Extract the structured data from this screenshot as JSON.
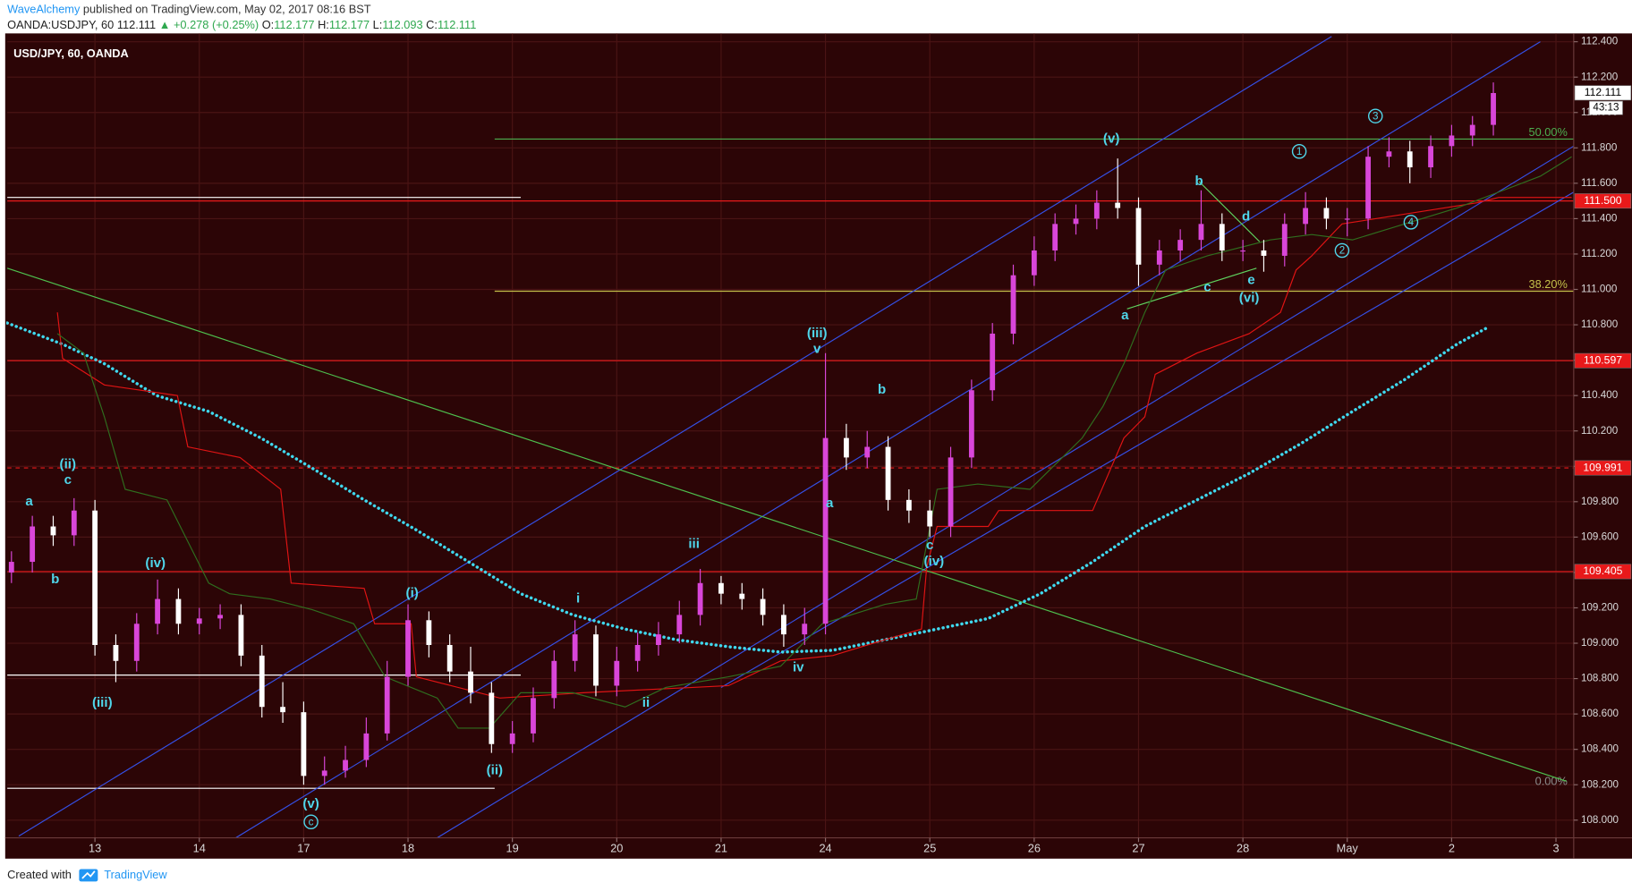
{
  "header": {
    "author": "WaveAlchemy",
    "published": "published on TradingView.com, May 02, 2017 08:16 BST",
    "symbol": "OANDA:USDJPY, 60",
    "last": "112.111",
    "arrow": "▲",
    "change": "+0.278 (+0.25%)",
    "ohlc": [
      {
        "key": "O:",
        "value": "112.177"
      },
      {
        "key": "H:",
        "value": "112.177"
      },
      {
        "key": "L:",
        "value": "112.093"
      },
      {
        "key": "C:",
        "value": "112.111"
      }
    ]
  },
  "chart_data": {
    "type": "candlestick",
    "title": "USD/JPY, 60, OANDA",
    "up_color": "#d946d9",
    "down_color": "#ffffff",
    "x": [
      -0.8,
      -0.6,
      -0.4,
      -0.2,
      0,
      0.2,
      0.4,
      0.6,
      0.8,
      1,
      1.2,
      1.4,
      1.6,
      1.8,
      2,
      2.2,
      2.4,
      2.6,
      2.8,
      3,
      3.2,
      3.4,
      3.6,
      3.8,
      4,
      4.2,
      4.4,
      4.6,
      4.8,
      5,
      5.2,
      5.4,
      5.6,
      5.8,
      6,
      6.2,
      6.4,
      6.6,
      6.8,
      7,
      7.2,
      7.4,
      7.6,
      7.8,
      8,
      8.2,
      8.4,
      8.6,
      8.8,
      9,
      9.2,
      9.4,
      9.6,
      9.8,
      10,
      10.2,
      10.4,
      10.6,
      10.8,
      11,
      11.2,
      11.4,
      11.6,
      11.8,
      12,
      12.2,
      12.4,
      12.6,
      12.8,
      13,
      13.2,
      13.4
    ],
    "open": [
      109.4,
      109.46,
      109.66,
      109.61,
      109.75,
      108.99,
      108.9,
      109.11,
      109.25,
      109.11,
      109.14,
      109.16,
      108.93,
      108.64,
      108.61,
      108.25,
      108.28,
      108.34,
      108.49,
      108.81,
      109.13,
      108.99,
      108.84,
      108.72,
      108.43,
      108.49,
      108.69,
      108.9,
      109.05,
      108.76,
      108.9,
      108.99,
      109.05,
      109.16,
      109.34,
      109.28,
      109.25,
      109.16,
      109.05,
      109.11,
      110.16,
      110.05,
      110.11,
      109.81,
      109.75,
      109.66,
      110.05,
      110.43,
      110.75,
      111.08,
      111.22,
      111.37,
      111.4,
      111.49,
      111.46,
      111.14,
      111.22,
      111.28,
      111.37,
      111.22,
      111.22,
      111.19,
      111.37,
      111.46,
      111.4,
      111.4,
      111.75,
      111.78,
      111.69,
      111.81,
      111.87,
      111.93
    ],
    "high": [
      109.52,
      109.72,
      109.72,
      109.82,
      109.81,
      109.05,
      109.17,
      109.36,
      109.31,
      109.2,
      109.22,
      109.22,
      108.99,
      108.78,
      108.67,
      108.36,
      108.42,
      108.58,
      108.9,
      109.22,
      109.18,
      109.05,
      108.98,
      108.78,
      108.56,
      108.75,
      108.96,
      109.13,
      109.1,
      108.98,
      109.06,
      109.12,
      109.24,
      109.42,
      109.38,
      109.34,
      109.31,
      109.22,
      109.2,
      110.64,
      110.24,
      110.2,
      110.17,
      109.87,
      109.81,
      110.11,
      110.49,
      110.81,
      111.14,
      111.3,
      111.43,
      111.48,
      111.56,
      111.74,
      111.52,
      111.28,
      111.34,
      111.56,
      111.43,
      111.28,
      111.28,
      111.43,
      111.55,
      111.52,
      111.46,
      111.81,
      111.86,
      111.84,
      111.87,
      111.93,
      111.98,
      112.17
    ],
    "low": [
      109.34,
      109.4,
      109.55,
      109.55,
      108.93,
      108.78,
      108.84,
      109.05,
      109.05,
      109.05,
      109.08,
      108.87,
      108.58,
      108.55,
      108.2,
      108.2,
      108.24,
      108.3,
      108.45,
      108.76,
      108.92,
      108.78,
      108.66,
      108.38,
      108.38,
      108.44,
      108.63,
      108.84,
      108.7,
      108.7,
      108.84,
      108.93,
      109.0,
      109.1,
      109.22,
      109.19,
      109.1,
      108.98,
      108.99,
      109.05,
      109.98,
      109.99,
      109.75,
      109.68,
      109.6,
      109.6,
      109.99,
      110.37,
      110.69,
      111.02,
      111.16,
      111.31,
      111.34,
      111.4,
      111.02,
      111.08,
      111.16,
      111.22,
      111.16,
      111.16,
      111.1,
      111.13,
      111.31,
      111.34,
      111.3,
      111.34,
      111.69,
      111.6,
      111.63,
      111.75,
      111.81,
      111.87
    ],
    "close": [
      109.46,
      109.66,
      109.61,
      109.75,
      108.99,
      108.9,
      109.11,
      109.25,
      109.11,
      109.14,
      109.16,
      108.93,
      108.64,
      108.61,
      108.25,
      108.28,
      108.34,
      108.49,
      108.81,
      109.13,
      108.99,
      108.84,
      108.72,
      108.43,
      108.49,
      108.69,
      108.9,
      109.05,
      108.76,
      108.9,
      108.99,
      109.05,
      109.16,
      109.34,
      109.28,
      109.25,
      109.16,
      109.05,
      109.11,
      110.16,
      110.05,
      110.11,
      109.81,
      109.75,
      109.66,
      110.05,
      110.43,
      110.75,
      111.08,
      111.22,
      111.37,
      111.4,
      111.49,
      111.46,
      111.14,
      111.22,
      111.28,
      111.37,
      111.22,
      111.22,
      111.19,
      111.37,
      111.46,
      111.4,
      111.4,
      111.75,
      111.78,
      111.69,
      111.81,
      111.87,
      111.93,
      112.11
    ],
    "xlim": [
      -0.84,
      14.17
    ],
    "xticks": [
      {
        "value": 0,
        "label": "13"
      },
      {
        "value": 1,
        "label": "14"
      },
      {
        "value": 2,
        "label": "17"
      },
      {
        "value": 3,
        "label": "18"
      },
      {
        "value": 4,
        "label": "19"
      },
      {
        "value": 5,
        "label": "20"
      },
      {
        "value": 6,
        "label": "21"
      },
      {
        "value": 7,
        "label": "24"
      },
      {
        "value": 8,
        "label": "25"
      },
      {
        "value": 9,
        "label": "26"
      },
      {
        "value": 10,
        "label": "27"
      },
      {
        "value": 11,
        "label": "28"
      },
      {
        "value": 12,
        "label": "May"
      },
      {
        "value": 13,
        "label": "2"
      },
      {
        "value": 14,
        "label": "3"
      }
    ],
    "ylim": [
      107.9,
      112.45
    ],
    "yticks": [
      {
        "value": 108.0,
        "label": "108.000"
      },
      {
        "value": 108.2,
        "label": "108.200"
      },
      {
        "value": 108.4,
        "label": "108.400"
      },
      {
        "value": 108.6,
        "label": "108.600"
      },
      {
        "value": 108.8,
        "label": "108.800"
      },
      {
        "value": 109.0,
        "label": "109.000"
      },
      {
        "value": 109.2,
        "label": "109.200"
      },
      {
        "value": 109.4,
        "label": "109.400"
      },
      {
        "value": 109.6,
        "label": "109.600"
      },
      {
        "value": 109.8,
        "label": "109.800"
      },
      {
        "value": 110.0,
        "label": "110.000"
      },
      {
        "value": 110.2,
        "label": "110.200"
      },
      {
        "value": 110.4,
        "label": "110.400"
      },
      {
        "value": 110.6,
        "label": "110.600"
      },
      {
        "value": 110.8,
        "label": "110.800"
      },
      {
        "value": 111.0,
        "label": "111.000"
      },
      {
        "value": 111.2,
        "label": "111.200"
      },
      {
        "value": 111.4,
        "label": "111.400"
      },
      {
        "value": 111.6,
        "label": "111.600"
      },
      {
        "value": 111.8,
        "label": "111.800"
      },
      {
        "value": 112.0,
        "label": "112.000"
      },
      {
        "value": 112.2,
        "label": "112.200"
      },
      {
        "value": 112.4,
        "label": "112.400"
      }
    ],
    "grid": true,
    "lines": [
      {
        "color": "#3fd8ee",
        "style": "dotted",
        "x": [
          -0.84,
          -0.31,
          0.09,
          0.59,
          1.09,
          1.59,
          2.08,
          2.58,
          3.08,
          3.58,
          4.08,
          4.58,
          5.08,
          5.57,
          6.07,
          6.57,
          7.07,
          7.57,
          8.07,
          8.56,
          9.06,
          9.56,
          10.06,
          10.56,
          11.06,
          11.56,
          12.05,
          12.55,
          13.05,
          13.33
        ],
        "y": [
          110.81,
          110.69,
          110.58,
          110.4,
          110.31,
          110.16,
          109.99,
          109.81,
          109.64,
          109.46,
          109.28,
          109.16,
          109.08,
          109.02,
          108.98,
          108.95,
          108.96,
          109.02,
          109.08,
          109.14,
          109.28,
          109.46,
          109.66,
          109.81,
          109.96,
          110.13,
          110.31,
          110.49,
          110.69,
          110.78
        ]
      },
      {
        "color": "#e01414",
        "style": "solid",
        "x": [
          -0.36,
          -0.31,
          0.09,
          0.79,
          0.89,
          1.39,
          1.78,
          1.88,
          2.58,
          2.68,
          3.03,
          3.08,
          3.88,
          4.68,
          6.07,
          6.57,
          7.07,
          7.57,
          7.92,
          7.97,
          8.07,
          8.56,
          8.66,
          9.56,
          9.86,
          10.06,
          10.16,
          10.56,
          11.06,
          11.36,
          11.51,
          11.66,
          11.9,
          11.95,
          13.25,
          13.45,
          14.15
        ],
        "y": [
          110.87,
          110.61,
          110.46,
          110.4,
          110.11,
          110.05,
          109.87,
          109.34,
          109.31,
          109.11,
          109.11,
          108.81,
          108.69,
          108.72,
          108.76,
          108.9,
          108.93,
          109.02,
          109.08,
          109.43,
          109.66,
          109.66,
          109.75,
          109.75,
          110.16,
          110.28,
          110.52,
          110.64,
          110.75,
          110.87,
          111.11,
          111.19,
          111.34,
          111.37,
          111.49,
          111.52,
          111.52
        ]
      },
      {
        "color": "#2f6e1f",
        "style": "solid",
        "x": [
          -0.36,
          -0.11,
          0.09,
          0.29,
          0.69,
          1.09,
          1.29,
          1.68,
          2.08,
          2.48,
          2.78,
          3.28,
          3.48,
          3.78,
          4.08,
          4.58,
          5.08,
          5.47,
          6.07,
          6.57,
          6.97,
          7.57,
          7.87,
          8.07,
          8.46,
          8.96,
          9.46,
          9.66,
          9.86,
          10.06,
          10.26,
          10.66,
          11.26,
          11.66,
          12.05,
          12.55,
          13.05,
          13.45,
          13.85,
          14.15
        ],
        "y": [
          110.75,
          110.64,
          110.28,
          109.87,
          109.81,
          109.34,
          109.28,
          109.25,
          109.19,
          109.11,
          108.81,
          108.69,
          108.52,
          108.52,
          108.72,
          108.72,
          108.64,
          108.75,
          108.81,
          108.87,
          109.11,
          109.22,
          109.25,
          109.87,
          109.9,
          109.87,
          110.16,
          110.34,
          110.58,
          110.87,
          111.11,
          111.19,
          111.28,
          111.31,
          111.28,
          111.37,
          111.46,
          111.55,
          111.64,
          111.75
        ]
      }
    ],
    "trendlines": [
      {
        "color": "#3550e6",
        "x": [
          -0.73,
          11.85
        ],
        "y": [
          107.91,
          112.43
        ]
      },
      {
        "color": "#3550e6",
        "x": [
          1.35,
          13.85
        ],
        "y": [
          107.9,
          112.4
        ]
      },
      {
        "color": "#3550e6",
        "x": [
          3.28,
          14.17
        ],
        "y": [
          107.9,
          111.81
        ]
      },
      {
        "color": "#3550e6",
        "x": [
          6.0,
          14.17
        ],
        "y": [
          108.75,
          111.55
        ]
      },
      {
        "color": "#4ec04e",
        "x": [
          -0.84,
          14.1
        ],
        "y": [
          111.12,
          108.22
        ]
      },
      {
        "color": "#5fd35f",
        "x": [
          9.89,
          11.13
        ],
        "y": [
          110.89,
          111.12
        ]
      },
      {
        "color": "#5fd35f",
        "x": [
          10.58,
          11.16
        ],
        "y": [
          111.61,
          111.27
        ]
      }
    ],
    "levels": [
      {
        "price": 111.5,
        "color": "#e8191a",
        "style": "solid"
      },
      {
        "price": 110.597,
        "color": "#e8191a",
        "style": "solid"
      },
      {
        "price": 109.991,
        "color": "#e8191a",
        "style": "dashed"
      },
      {
        "price": 109.405,
        "color": "#e8191a",
        "style": "solid"
      },
      {
        "price": 111.52,
        "color": "#ffffff",
        "style": "solid",
        "x": [
          -0.84,
          4.08
        ]
      },
      {
        "price": 108.82,
        "color": "#ffffff",
        "style": "solid",
        "x": [
          -0.84,
          4.08
        ]
      },
      {
        "price": 108.18,
        "color": "#ffffff",
        "style": "solid",
        "x": [
          -0.84,
          3.83
        ]
      }
    ],
    "fib_levels": [
      {
        "label": "50.00%",
        "price": 111.85,
        "color": "#4caf50",
        "x": [
          3.83,
          14.17
        ]
      },
      {
        "label": "38.20%",
        "price": 110.99,
        "color": "#c5c14a",
        "x": [
          3.83,
          14.17
        ]
      },
      {
        "label": "0.00%",
        "price": 108.18,
        "color": "#8a8a8a"
      }
    ],
    "price_tags": [
      {
        "price": 112.111,
        "color": "#ffffff",
        "text_color": "#000000"
      },
      {
        "price": {
          "value": 111.5,
          "label": "111.500"
        },
        "color": "#e8191a",
        "text_color": "#ffffff"
      },
      {
        "price": {
          "value": 110.597,
          "label": "110.597"
        },
        "color": "#e8191a",
        "text_color": "#ffffff"
      },
      {
        "price": {
          "value": 109.991,
          "label": "109.991"
        },
        "color": "#e8191a",
        "text_color": "#ffffff"
      },
      {
        "price": {
          "value": 109.405,
          "label": "109.405"
        },
        "color": "#e8191a",
        "text_color": "#ffffff"
      }
    ],
    "countdown": "43:13",
    "annotation_color": "#4fd6ea",
    "annotations": [
      {
        "label": "a",
        "x": -0.63,
        "y": 109.8
      },
      {
        "label": "b",
        "x": -0.38,
        "y": 109.36
      },
      {
        "label": "(ii)",
        "x": -0.26,
        "y": 110.01
      },
      {
        "label": "c",
        "x": -0.26,
        "y": 109.92
      },
      {
        "label": "(iii)",
        "x": 0.07,
        "y": 108.66
      },
      {
        "label": "(iv)",
        "x": 0.58,
        "y": 109.45
      },
      {
        "label": "(v)",
        "x": 2.07,
        "y": 108.09
      },
      {
        "label": "c",
        "x": 2.07,
        "y": 107.99,
        "circled": true
      },
      {
        "label": "(i)",
        "x": 3.04,
        "y": 109.28
      },
      {
        "label": "(ii)",
        "x": 3.83,
        "y": 108.28
      },
      {
        "label": "i",
        "x": 4.63,
        "y": 109.25
      },
      {
        "label": "ii",
        "x": 5.28,
        "y": 108.66
      },
      {
        "label": "iii",
        "x": 5.74,
        "y": 109.56
      },
      {
        "label": "iv",
        "x": 6.74,
        "y": 108.86
      },
      {
        "label": "(iii)",
        "x": 6.92,
        "y": 110.75
      },
      {
        "label": "v",
        "x": 6.92,
        "y": 110.66
      },
      {
        "label": "a",
        "x": 7.04,
        "y": 109.79
      },
      {
        "label": "b",
        "x": 7.54,
        "y": 110.43
      },
      {
        "label": "c",
        "x": 8.0,
        "y": 109.55
      },
      {
        "label": "(iv)",
        "x": 8.04,
        "y": 109.46
      },
      {
        "label": "(v)",
        "x": 9.74,
        "y": 111.85
      },
      {
        "label": "a",
        "x": 9.87,
        "y": 110.85
      },
      {
        "label": "b",
        "x": 10.58,
        "y": 111.61
      },
      {
        "label": "c",
        "x": 10.66,
        "y": 111.01
      },
      {
        "label": "d",
        "x": 11.03,
        "y": 111.41
      },
      {
        "label": "e",
        "x": 11.08,
        "y": 111.05
      },
      {
        "label": "(vi)",
        "x": 11.06,
        "y": 110.95
      },
      {
        "label": "1",
        "x": 11.54,
        "y": 111.78,
        "circled": true
      },
      {
        "label": "2",
        "x": 11.95,
        "y": 111.22,
        "circled": true
      },
      {
        "label": "3",
        "x": 12.27,
        "y": 111.98,
        "circled": true
      },
      {
        "label": "4",
        "x": 12.61,
        "y": 111.38,
        "circled": true
      }
    ]
  },
  "footer": {
    "created": "Created with",
    "brand": "TradingView"
  }
}
